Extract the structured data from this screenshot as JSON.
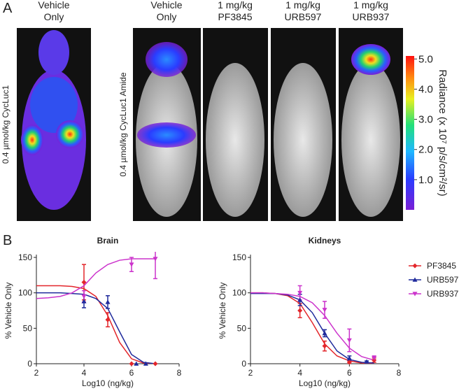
{
  "panel_labels": [
    "A",
    "B"
  ],
  "panel_a": {
    "headers": [
      [
        "Vehicle",
        "Only"
      ],
      [
        "Vehicle",
        "Only"
      ],
      [
        "1 mg/kg",
        "PF3845"
      ],
      [
        "1 mg/kg",
        "URB597"
      ],
      [
        "1 mg/kg",
        "URB937"
      ]
    ],
    "row_labels": [
      "0.4 µmol/kg CycLuc1",
      "0.4 µmol/kg CycLuc1 Amide"
    ],
    "colorbar": {
      "label": "Radiance (x 10⁷ p/s/cm²/sr)",
      "clim": [
        0,
        5.1
      ],
      "ticks": [
        {
          "value": 1,
          "label": "1.0"
        },
        {
          "value": 2,
          "label": "2.0"
        },
        {
          "value": 3,
          "label": "3.0"
        },
        {
          "value": 4,
          "label": "4.0"
        },
        {
          "value": 5,
          "label": "5.0"
        }
      ]
    }
  },
  "chart_data": [
    {
      "type": "scatter",
      "title": "Brain",
      "x_label": "Log10 (ng/kg)",
      "y_label": "% Vehicle Only",
      "xlim": [
        2,
        8
      ],
      "xticks": [
        2,
        4,
        6,
        8
      ],
      "ylim": [
        0,
        150
      ],
      "yticks": [
        0,
        50,
        100,
        150
      ],
      "curve_x": [
        2,
        2.5,
        3,
        3.5,
        4,
        4.5,
        5,
        5.5,
        6,
        6.5,
        7
      ],
      "series": [
        {
          "name": "PF3845",
          "color": "#e3262b",
          "marker": "diamond",
          "x": [
            4,
            5,
            6,
            7
          ],
          "values": [
            115,
            62,
            0,
            0
          ],
          "errors": [
            25,
            10,
            0,
            0
          ],
          "curve": [
            110,
            110,
            110,
            109,
            106,
            95,
            68,
            30,
            7,
            1,
            0
          ]
        },
        {
          "name": "URB597",
          "color": "#1f2a9c",
          "marker": "triangle-up",
          "x": [
            4,
            5,
            6.2,
            6.6
          ],
          "values": [
            88,
            87,
            0,
            0
          ],
          "errors": [
            9,
            9,
            0,
            0
          ],
          "curve": [
            100,
            100,
            100,
            99,
            98,
            92,
            78,
            45,
            13,
            2,
            0
          ]
        },
        {
          "name": "URB937",
          "color": "#cc33cc",
          "marker": "triangle-down",
          "x": [
            4,
            6,
            7
          ],
          "values": [
            95,
            140,
            148
          ],
          "errors": [
            8,
            10,
            28
          ],
          "curve": [
            92,
            93,
            95,
            100,
            110,
            128,
            140,
            146,
            148,
            148,
            148
          ]
        }
      ]
    },
    {
      "type": "scatter",
      "title": "Kidneys",
      "x_label": "Log10 (ng/kg)",
      "y_label": "% Vehicle Only",
      "xlim": [
        2,
        8
      ],
      "xticks": [
        2,
        4,
        6,
        8
      ],
      "ylim": [
        0,
        150
      ],
      "yticks": [
        0,
        50,
        100,
        150
      ],
      "legend": "right",
      "curve_x": [
        2,
        2.5,
        3,
        3.5,
        4,
        4.5,
        5,
        5.5,
        6,
        6.5,
        7
      ],
      "series": [
        {
          "name": "PF3845",
          "color": "#e3262b",
          "marker": "diamond",
          "x": [
            4,
            5,
            6,
            7
          ],
          "values": [
            75,
            25,
            2,
            5
          ],
          "errors": [
            10,
            7,
            2,
            3
          ],
          "curve": [
            100,
            100,
            99,
            96,
            85,
            58,
            28,
            11,
            4,
            1,
            0
          ]
        },
        {
          "name": "URB597",
          "color": "#1f2a9c",
          "marker": "triangle-up",
          "x": [
            4,
            5,
            6,
            6.7
          ],
          "values": [
            90,
            43,
            8,
            3
          ],
          "errors": [
            8,
            5,
            3,
            1
          ],
          "curve": [
            99,
            99,
            99,
            97,
            90,
            72,
            43,
            18,
            6,
            2,
            1
          ]
        },
        {
          "name": "URB937",
          "color": "#cc33cc",
          "marker": "triangle-down",
          "x": [
            4,
            5,
            6,
            7
          ],
          "values": [
            100,
            76,
            33,
            8
          ],
          "errors": [
            10,
            12,
            16,
            3
          ],
          "curve": [
            100,
            100,
            99,
            98,
            95,
            86,
            68,
            43,
            22,
            10,
            5
          ]
        }
      ]
    }
  ]
}
